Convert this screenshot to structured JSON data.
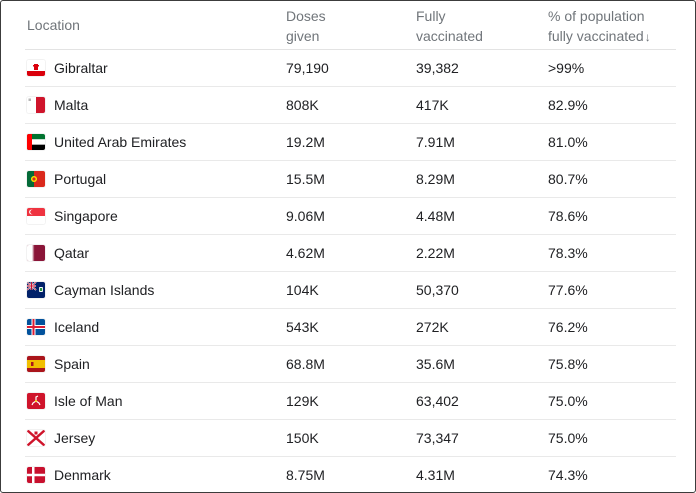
{
  "table": {
    "headers": {
      "location": "Location",
      "doses_line1": "Doses",
      "doses_line2": "given",
      "fully_line1": "Fully",
      "fully_line2": "vaccinated",
      "pct_line1": "% of population",
      "pct_line2": "fully vaccinated",
      "sort_arrow": "↓"
    },
    "rows": [
      {
        "location": "Gibraltar",
        "doses": "79,190",
        "fully": "39,382",
        "pct": ">99%",
        "flag_icon": "gibraltar-flag-icon"
      },
      {
        "location": "Malta",
        "doses": "808K",
        "fully": "417K",
        "pct": "82.9%",
        "flag_icon": "malta-flag-icon"
      },
      {
        "location": "United Arab Emirates",
        "doses": "19.2M",
        "fully": "7.91M",
        "pct": "81.0%",
        "flag_icon": "uae-flag-icon"
      },
      {
        "location": "Portugal",
        "doses": "15.5M",
        "fully": "8.29M",
        "pct": "80.7%",
        "flag_icon": "portugal-flag-icon"
      },
      {
        "location": "Singapore",
        "doses": "9.06M",
        "fully": "4.48M",
        "pct": "78.6%",
        "flag_icon": "singapore-flag-icon"
      },
      {
        "location": "Qatar",
        "doses": "4.62M",
        "fully": "2.22M",
        "pct": "78.3%",
        "flag_icon": "qatar-flag-icon"
      },
      {
        "location": "Cayman Islands",
        "doses": "104K",
        "fully": "50,370",
        "pct": "77.6%",
        "flag_icon": "cayman-islands-flag-icon"
      },
      {
        "location": "Iceland",
        "doses": "543K",
        "fully": "272K",
        "pct": "76.2%",
        "flag_icon": "iceland-flag-icon"
      },
      {
        "location": "Spain",
        "doses": "68.8M",
        "fully": "35.6M",
        "pct": "75.8%",
        "flag_icon": "spain-flag-icon"
      },
      {
        "location": "Isle of Man",
        "doses": "129K",
        "fully": "63,402",
        "pct": "75.0%",
        "flag_icon": "isle-of-man-flag-icon"
      },
      {
        "location": "Jersey",
        "doses": "150K",
        "fully": "73,347",
        "pct": "75.0%",
        "flag_icon": "jersey-flag-icon"
      },
      {
        "location": "Denmark",
        "doses": "8.75M",
        "fully": "4.31M",
        "pct": "74.3%",
        "flag_icon": "denmark-flag-icon"
      }
    ]
  }
}
